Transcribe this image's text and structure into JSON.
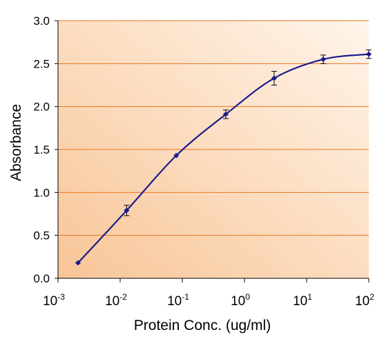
{
  "chart_data": {
    "type": "scatter",
    "xlabel": "Protein Conc. (ug/ml)",
    "ylabel": "Absorbance",
    "x_scale": "log",
    "xlim": [
      0.001,
      100
    ],
    "ylim": [
      0,
      3.0
    ],
    "grid": "horizontal",
    "x_ticks": [
      {
        "base": "10",
        "exp": "-3",
        "value": 0.001
      },
      {
        "base": "10",
        "exp": "-2",
        "value": 0.01
      },
      {
        "base": "10",
        "exp": "-1",
        "value": 0.1
      },
      {
        "base": "10",
        "exp": "0",
        "value": 1
      },
      {
        "base": "10",
        "exp": "1",
        "value": 10
      },
      {
        "base": "10",
        "exp": "2",
        "value": 100
      }
    ],
    "y_ticks": [
      "0.0",
      "0.5",
      "1.0",
      "1.5",
      "2.0",
      "2.5",
      "3.0"
    ],
    "series": [
      {
        "points": [
          {
            "x": 0.0021,
            "y": 0.18,
            "err": 0.0
          },
          {
            "x": 0.0127,
            "y": 0.79,
            "err": 0.06
          },
          {
            "x": 0.08,
            "y": 1.43,
            "err": 0.0
          },
          {
            "x": 0.5,
            "y": 1.91,
            "err": 0.05
          },
          {
            "x": 3.0,
            "y": 2.33,
            "err": 0.08
          },
          {
            "x": 18.5,
            "y": 2.55,
            "err": 0.05
          },
          {
            "x": 100,
            "y": 2.61,
            "err": 0.05
          }
        ]
      }
    ],
    "colors": {
      "series": "#1a1a8c",
      "grid": "#e8761e",
      "plot_bg_dark": "#f8c79a",
      "plot_bg_light": "#fff3e6"
    }
  }
}
